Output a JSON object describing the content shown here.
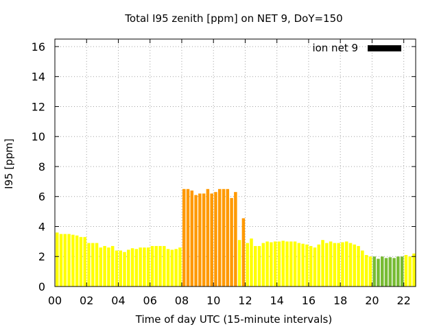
{
  "chart_data": {
    "type": "bar",
    "title": "Total I95 zenith [ppm] on NET 9, DoY=150",
    "xlabel": "Time of day UTC (15-minute intervals)",
    "ylabel": "I95 [ppm]",
    "xlim": [
      0,
      22.75
    ],
    "ylim": [
      0,
      16.5
    ],
    "xticks": [
      "00",
      "02",
      "04",
      "06",
      "08",
      "10",
      "12",
      "14",
      "16",
      "18",
      "20",
      "22"
    ],
    "yticks": [
      "0",
      "2",
      "4",
      "6",
      "8",
      "10",
      "12",
      "14",
      "16"
    ],
    "grid": true,
    "legend": {
      "label": "ion net 9",
      "position": "top-right",
      "color": "#000000"
    },
    "bar_interval_hours": 0.25,
    "colors": {
      "yellow": "#ffff00",
      "orange": "#ff9900",
      "green": "#77bb33"
    },
    "series": [
      {
        "values": [
          3.6,
          3.5,
          3.5,
          3.5,
          3.45,
          3.4,
          3.3,
          3.3,
          2.9,
          2.9,
          2.9,
          2.6,
          2.7,
          2.6,
          2.7,
          2.4,
          2.4,
          2.3,
          2.45,
          2.55,
          2.5,
          2.6,
          2.6,
          2.6,
          2.7,
          2.7,
          2.7,
          2.7,
          2.5,
          2.45,
          2.5,
          2.6,
          6.5,
          6.5,
          6.4,
          6.1,
          6.2,
          6.2,
          6.5,
          6.2,
          6.3,
          6.5,
          6.5,
          6.5,
          5.9,
          6.3,
          3.1,
          4.55,
          2.9,
          3.2,
          2.7,
          2.7,
          2.9,
          3.0,
          2.95,
          3.0,
          3.0,
          3.05,
          3.0,
          3.0,
          3.0,
          2.9,
          2.85,
          2.8,
          2.7,
          2.6,
          2.8,
          3.1,
          2.9,
          3.0,
          2.9,
          2.9,
          2.95,
          3.0,
          2.9,
          2.8,
          2.7,
          2.4,
          2.1,
          2.0,
          2.0,
          1.85,
          2.0,
          1.9,
          1.95,
          1.9,
          2.0,
          2.0,
          2.1,
          2.0,
          2.2
        ],
        "bar_colors": [
          "yellow",
          "yellow",
          "yellow",
          "yellow",
          "yellow",
          "yellow",
          "yellow",
          "yellow",
          "yellow",
          "yellow",
          "yellow",
          "yellow",
          "yellow",
          "yellow",
          "yellow",
          "yellow",
          "yellow",
          "yellow",
          "yellow",
          "yellow",
          "yellow",
          "yellow",
          "yellow",
          "yellow",
          "yellow",
          "yellow",
          "yellow",
          "yellow",
          "yellow",
          "yellow",
          "yellow",
          "yellow",
          "orange",
          "orange",
          "orange",
          "orange",
          "orange",
          "orange",
          "orange",
          "orange",
          "orange",
          "orange",
          "orange",
          "orange",
          "orange",
          "orange",
          "yellow",
          "orange",
          "yellow",
          "yellow",
          "yellow",
          "yellow",
          "yellow",
          "yellow",
          "yellow",
          "yellow",
          "yellow",
          "yellow",
          "yellow",
          "yellow",
          "yellow",
          "yellow",
          "yellow",
          "yellow",
          "yellow",
          "yellow",
          "yellow",
          "yellow",
          "yellow",
          "yellow",
          "yellow",
          "yellow",
          "yellow",
          "yellow",
          "yellow",
          "yellow",
          "yellow",
          "yellow",
          "yellow",
          "yellow",
          "green",
          "green",
          "green",
          "green",
          "green",
          "green",
          "green",
          "green",
          "yellow",
          "yellow",
          "yellow"
        ]
      }
    ]
  }
}
